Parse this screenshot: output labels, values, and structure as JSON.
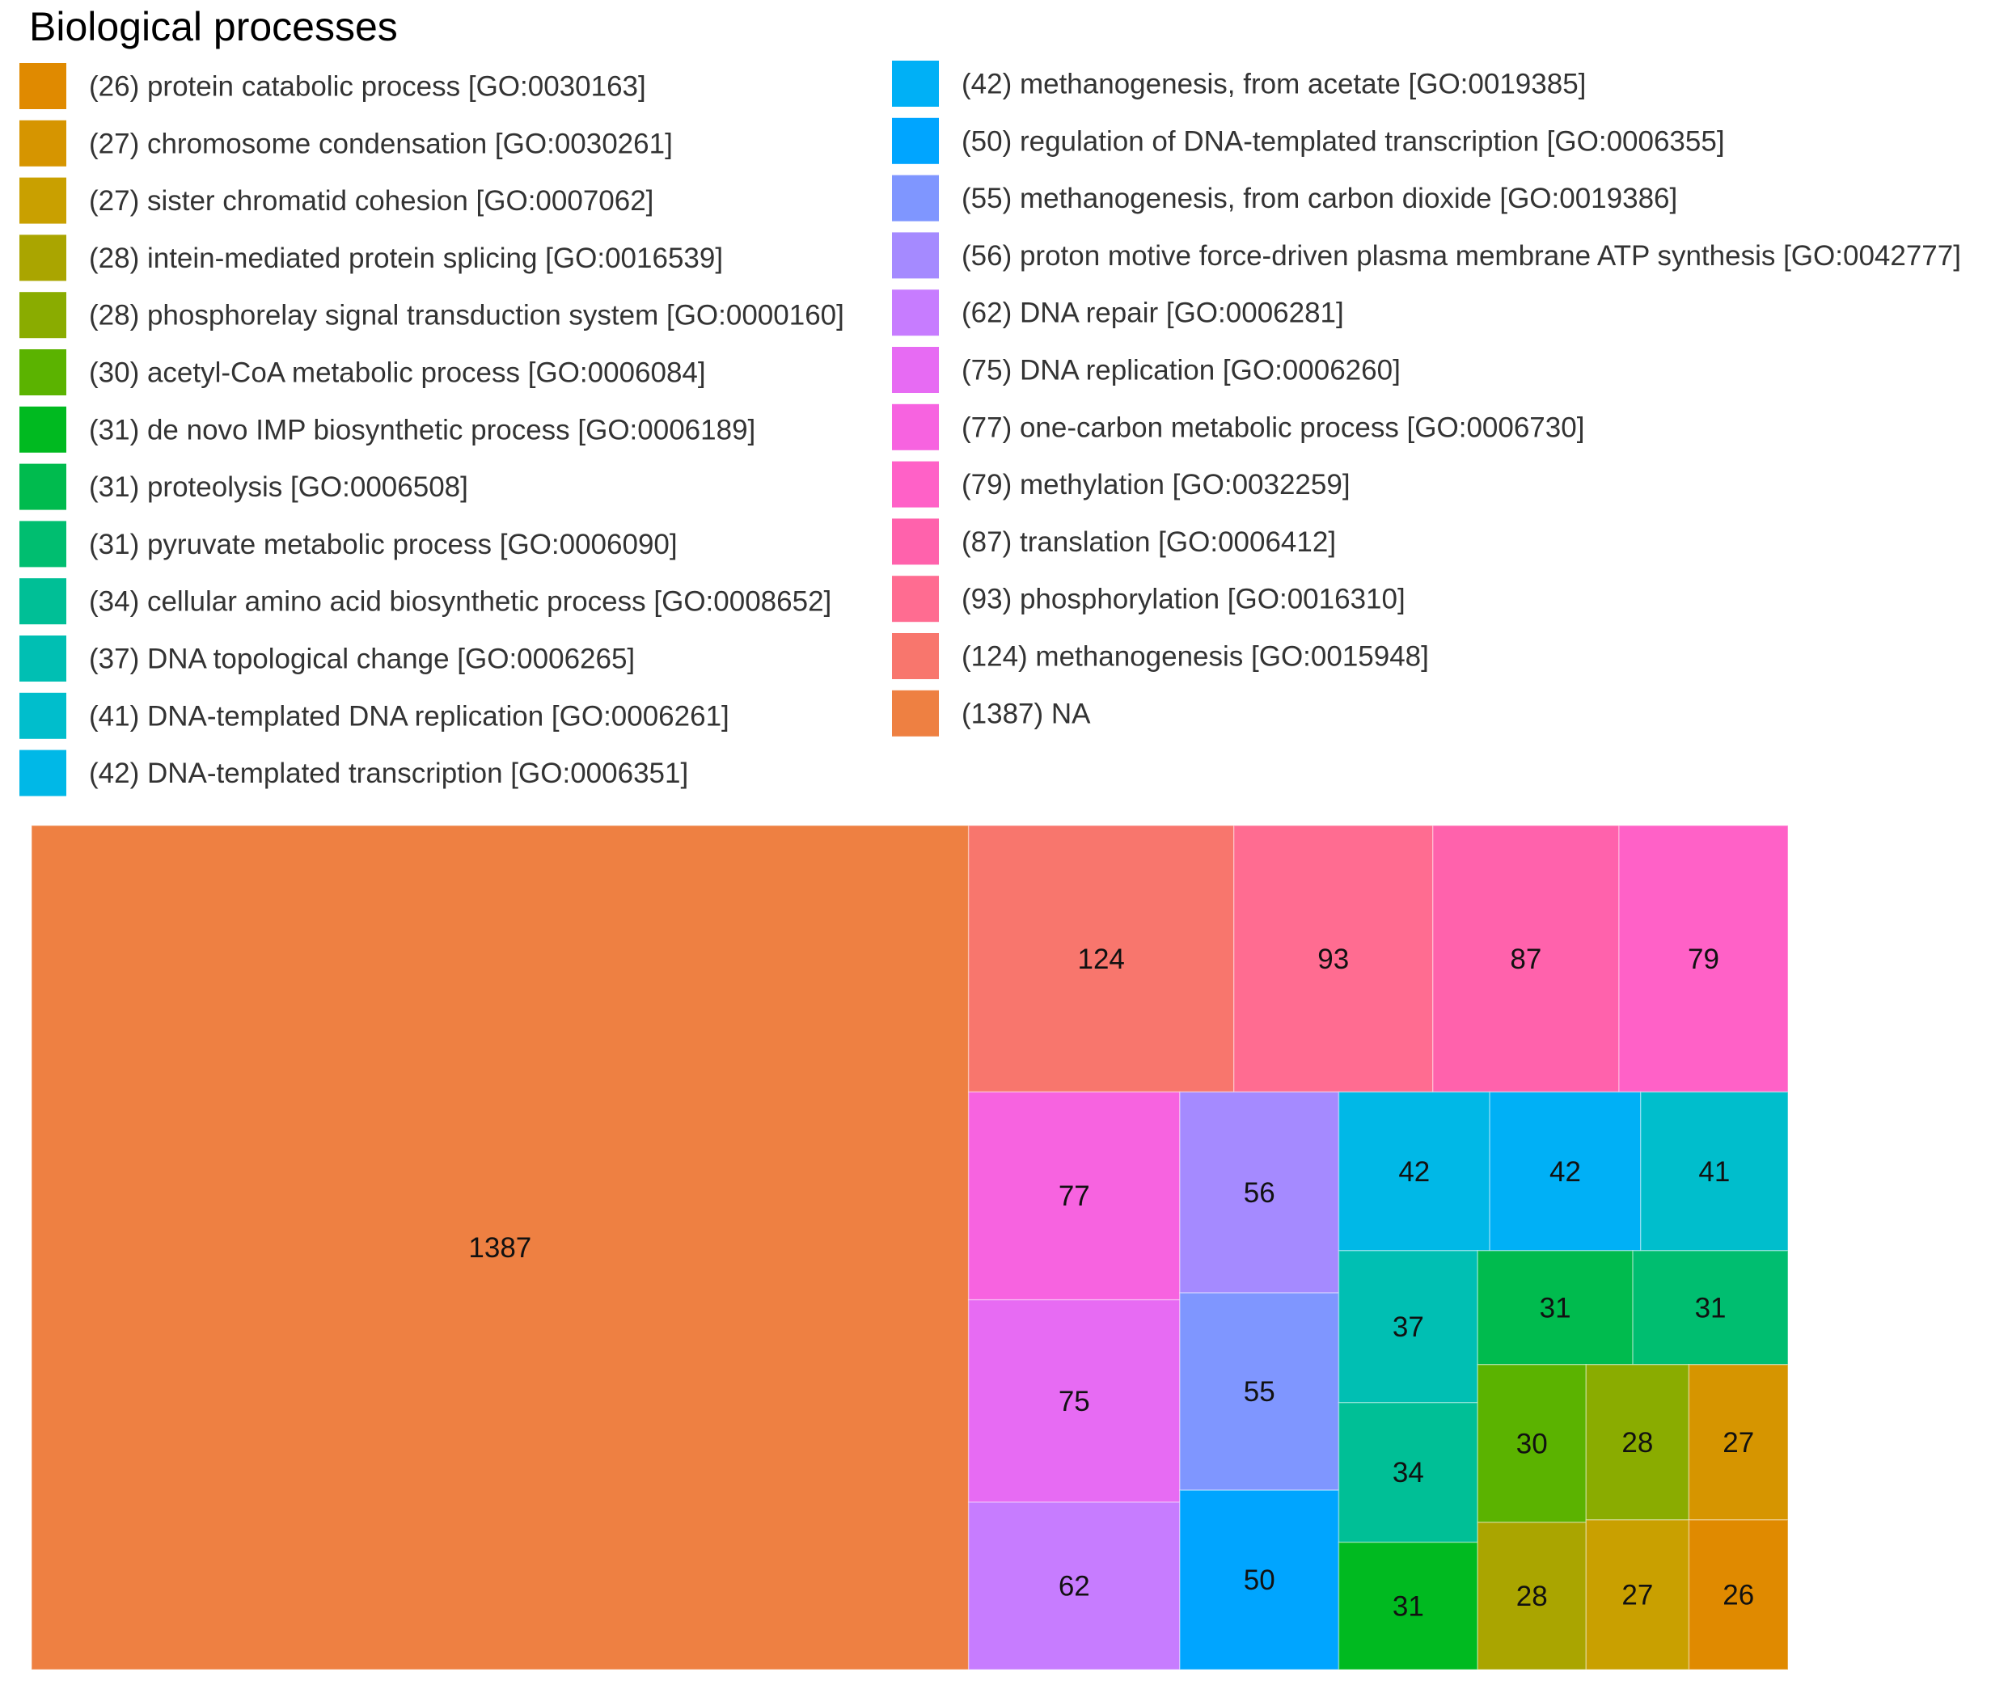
{
  "chart_data": {
    "type": "treemap",
    "title": "Biological processes",
    "legend_position": "top",
    "items": [
      {
        "value": 26,
        "label": "(26) protein catabolic process [GO:0030163]",
        "color": "#E08A00"
      },
      {
        "value": 27,
        "label": "(27) chromosome condensation [GO:0030261]",
        "color": "#D69500"
      },
      {
        "value": 27,
        "label": "(27) sister chromatid cohesion [GO:0007062]",
        "color": "#C9A000"
      },
      {
        "value": 28,
        "label": "(28) intein-mediated protein splicing [GO:0016539]",
        "color": "#AAA500"
      },
      {
        "value": 28,
        "label": "(28) phosphorelay signal transduction system [GO:0000160]",
        "color": "#8AAC00"
      },
      {
        "value": 30,
        "label": "(30) acetyl-CoA metabolic process [GO:0006084]",
        "color": "#5BB300"
      },
      {
        "value": 31,
        "label": "(31) de novo IMP biosynthetic process [GO:0006189]",
        "color": "#00BA20"
      },
      {
        "value": 31,
        "label": "(31) proteolysis [GO:0006508]",
        "color": "#00BB4E"
      },
      {
        "value": 31,
        "label": "(31) pyruvate metabolic process [GO:0006090]",
        "color": "#00BE70"
      },
      {
        "value": 34,
        "label": "(34) cellular amino acid biosynthetic process [GO:0008652]",
        "color": "#00BF96"
      },
      {
        "value": 37,
        "label": "(37) DNA topological change [GO:0006265]",
        "color": "#00BFB3"
      },
      {
        "value": 41,
        "label": "(41) DNA-templated DNA replication [GO:0006261]",
        "color": "#00BECC"
      },
      {
        "value": 42,
        "label": "(42) DNA-templated transcription [GO:0006351]",
        "color": "#00B8E7"
      },
      {
        "value": 42,
        "label": "(42) methanogenesis, from acetate [GO:0019385]",
        "color": "#00B0F6"
      },
      {
        "value": 50,
        "label": "(50) regulation of DNA-templated transcription [GO:0006355]",
        "color": "#00A5FF"
      },
      {
        "value": 55,
        "label": "(55) methanogenesis, from carbon dioxide [GO:0019386]",
        "color": "#7F96FF"
      },
      {
        "value": 56,
        "label": "(56) proton motive force-driven plasma membrane ATP synthesis [GO:0042777]",
        "color": "#A58AFF"
      },
      {
        "value": 62,
        "label": "(62) DNA repair [GO:0006281]",
        "color": "#C77CFF"
      },
      {
        "value": 75,
        "label": "(75) DNA replication [GO:0006260]",
        "color": "#E76BF3"
      },
      {
        "value": 77,
        "label": "(77) one-carbon metabolic process [GO:0006730]",
        "color": "#F763E0"
      },
      {
        "value": 79,
        "label": "(79) methylation [GO:0032259]",
        "color": "#FF61C7"
      },
      {
        "value": 87,
        "label": "(87) translation [GO:0006412]",
        "color": "#FF62AC"
      },
      {
        "value": 93,
        "label": "(93) phosphorylation [GO:0016310]",
        "color": "#FF6C91"
      },
      {
        "value": 124,
        "label": "(124) methanogenesis [GO:0015948]",
        "color": "#F8766D"
      },
      {
        "value": 1387,
        "label": "(1387) NA",
        "color": "#EE8042"
      }
    ]
  }
}
